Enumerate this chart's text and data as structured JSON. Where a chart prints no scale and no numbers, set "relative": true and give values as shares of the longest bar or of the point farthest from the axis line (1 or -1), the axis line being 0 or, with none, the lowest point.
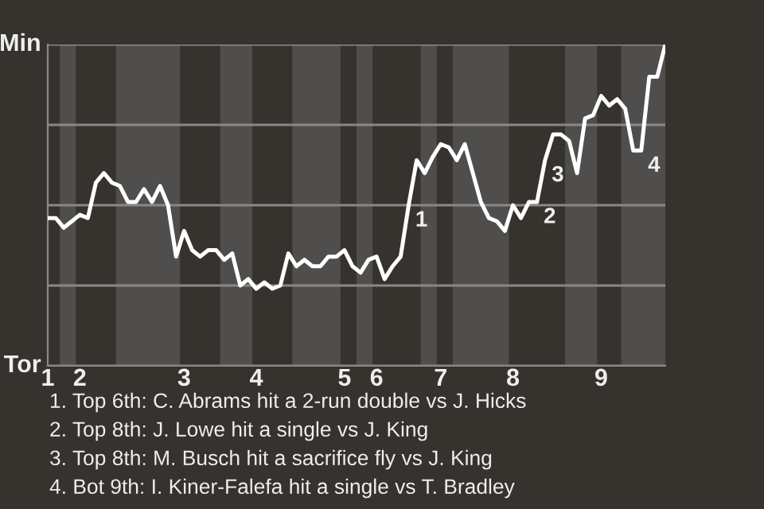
{
  "chart_data": {
    "type": "line",
    "relative": true,
    "categories": [
      "1",
      null,
      null,
      null,
      "2",
      null,
      null,
      null,
      null,
      null,
      null,
      null,
      null,
      null,
      null,
      null,
      null,
      "3",
      null,
      null,
      null,
      null,
      null,
      null,
      null,
      null,
      "4",
      null,
      null,
      null,
      null,
      null,
      null,
      null,
      null,
      null,
      null,
      "5",
      null,
      null,
      null,
      "6",
      null,
      null,
      null,
      null,
      null,
      null,
      null,
      "7",
      null,
      null,
      null,
      null,
      null,
      null,
      null,
      null,
      "8",
      null,
      null,
      null,
      null,
      null,
      null,
      null,
      null,
      null,
      null,
      "9",
      null,
      null,
      null,
      null,
      null,
      null,
      null,
      null
    ],
    "series": [
      {
        "color": "#ffffff",
        "values": [
          0.46,
          0.46,
          0.43,
          0.45,
          0.47,
          0.46,
          0.57,
          0.6,
          0.57,
          0.56,
          0.51,
          0.51,
          0.55,
          0.51,
          0.56,
          0.5,
          0.34,
          0.42,
          0.36,
          0.34,
          0.36,
          0.36,
          0.33,
          0.35,
          0.25,
          0.27,
          0.24,
          0.26,
          0.24,
          0.25,
          0.35,
          0.31,
          0.33,
          0.31,
          0.31,
          0.34,
          0.34,
          0.36,
          0.31,
          0.29,
          0.33,
          0.34,
          0.27,
          0.31,
          0.34,
          0.5,
          0.64,
          0.6,
          0.65,
          0.69,
          0.68,
          0.64,
          0.69,
          0.6,
          0.51,
          0.46,
          0.45,
          0.42,
          0.5,
          0.46,
          0.51,
          0.51,
          0.64,
          0.72,
          0.72,
          0.7,
          0.6,
          0.77,
          0.78,
          0.84,
          0.81,
          0.83,
          0.8,
          0.67,
          0.67,
          0.9,
          0.9,
          1
        ]
      }
    ],
    "grid": "y",
    "marker": "none",
    "line_style": "solid",
    "annotations": [
      "1",
      "2",
      "3",
      "4",
      "Min",
      "Tor",
      "1. Top 6th: C. Abrams hit a 2-run double vs J. Hicks",
      "2. Top 8th: J. Lowe hit a single vs J. King",
      "3. Top 8th: M. Busch hit a sacrifice fly vs J. King",
      "4. Bot 9th: I. Kiner-Falefa hit a single vs T. Bradley"
    ]
  }
}
